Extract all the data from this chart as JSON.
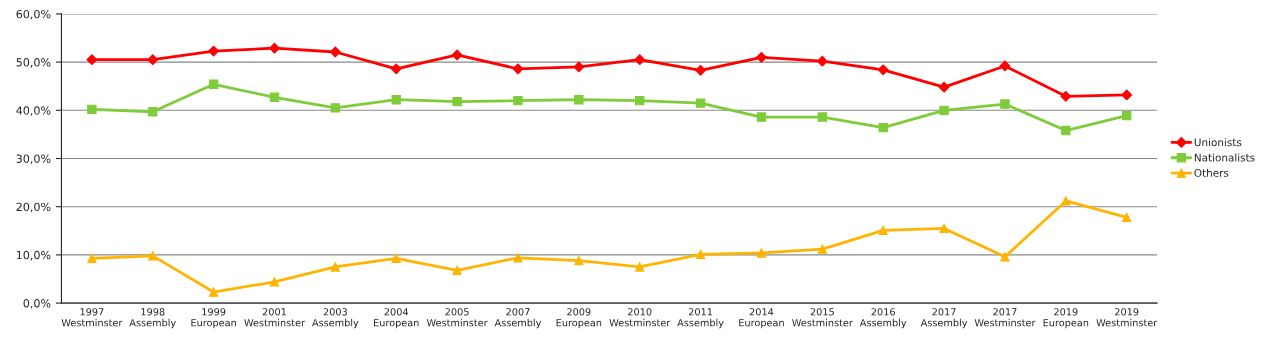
{
  "chart_data": {
    "type": "line",
    "categories": [
      "1997\nWestminster",
      "1998\nAssembly",
      "1999\nEuropean",
      "2001\nWestminster",
      "2003\nAssembly",
      "2004\nEuropean",
      "2005\nWestminster",
      "2007\nAssembly",
      "2009\nEuropean",
      "2010\nWestminster",
      "2011\nAssembly",
      "2014\nEuropean",
      "2015\nWestminster",
      "2016\nAssembly",
      "2017\nAssembly",
      "2017\nWestminster",
      "2019\nEuropean",
      "2019\nWestminster"
    ],
    "series": [
      {
        "name": "Unionists",
        "color": "#ff0000",
        "marker": "diamond",
        "values": [
          50.5,
          50.5,
          52.3,
          52.9,
          52.1,
          48.6,
          51.5,
          48.6,
          49.0,
          50.5,
          48.3,
          51.0,
          50.2,
          48.4,
          44.8,
          49.2,
          42.9,
          43.2
        ]
      },
      {
        "name": "Nationalists",
        "color": "#7fcc3a",
        "marker": "square",
        "values": [
          40.2,
          39.7,
          45.4,
          42.7,
          40.5,
          42.2,
          41.8,
          42.0,
          42.2,
          42.0,
          41.5,
          38.6,
          38.6,
          36.4,
          40.0,
          41.3,
          35.8,
          38.9
        ]
      },
      {
        "name": "Others",
        "color": "#ffb400",
        "marker": "triangle",
        "values": [
          9.3,
          9.8,
          2.3,
          4.4,
          7.5,
          9.3,
          6.8,
          9.4,
          8.8,
          7.5,
          10.1,
          10.4,
          11.2,
          15.1,
          15.5,
          9.6,
          21.2,
          17.8
        ]
      }
    ],
    "ylim": [
      0,
      60
    ],
    "yticks": [
      {
        "value": 0,
        "label": "0,0%"
      },
      {
        "value": 10,
        "label": "10,0%"
      },
      {
        "value": 20,
        "label": "20,0%"
      },
      {
        "value": 30,
        "label": "30,0%"
      },
      {
        "value": 40,
        "label": "40,0%"
      },
      {
        "value": 50,
        "label": "50,0%"
      },
      {
        "value": 60,
        "label": "60,0%"
      }
    ],
    "grid": "y",
    "legend": "right",
    "line_style": "solid"
  }
}
